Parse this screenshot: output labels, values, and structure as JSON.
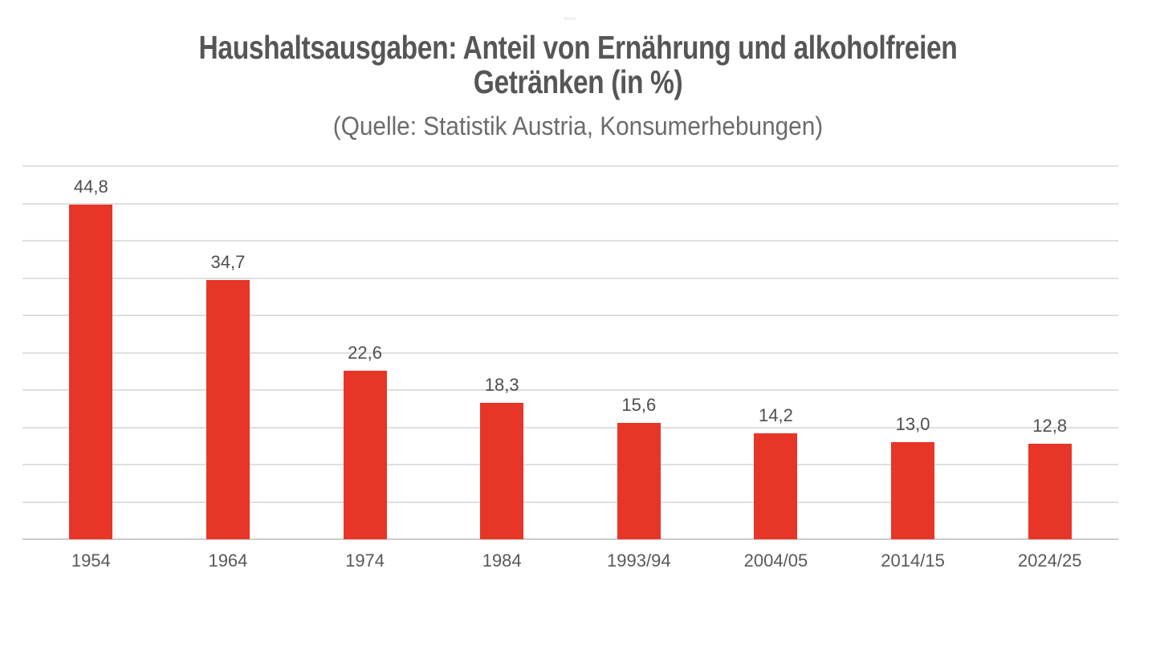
{
  "chart_data": {
    "type": "bar",
    "title": "Haushaltsausgaben: Anteil von Ernährung und alkoholfreien Getränken (in %)",
    "title_lines": [
      "Haushaltsausgaben: Anteil von Ernährung und alkoholfreien",
      "Getränken (in %)"
    ],
    "subtitle": "(Quelle: Statistik Austria, Konsumerhebungen)",
    "categories": [
      "1954",
      "1964",
      "1974",
      "1984",
      "1993/94",
      "2004/05",
      "2014/15",
      "2024/25"
    ],
    "values": [
      44.8,
      34.7,
      22.6,
      18.3,
      15.6,
      14.2,
      13.0,
      12.8
    ],
    "value_labels": [
      "44,8",
      "34,7",
      "22,6",
      "18,3",
      "15,6",
      "14,2",
      "13,0",
      "12,8"
    ],
    "xlabel": "",
    "ylabel": "",
    "ylim": [
      0,
      50
    ],
    "gridline_step": 5,
    "grid": true,
    "y_tick_labels_visible": false,
    "legend": null,
    "decimal_separator": ","
  },
  "colors": {
    "bar": "#e73527",
    "gridline": "#dfdfdf",
    "axis_line": "#cbcbcb",
    "title_text": "#565656",
    "subtitle_text": "#6b6b6b",
    "value_label_text": "#4e4e4e",
    "category_label_text": "#585858",
    "background": "#ffffff",
    "artifact_dash": "#f2f2f2"
  }
}
